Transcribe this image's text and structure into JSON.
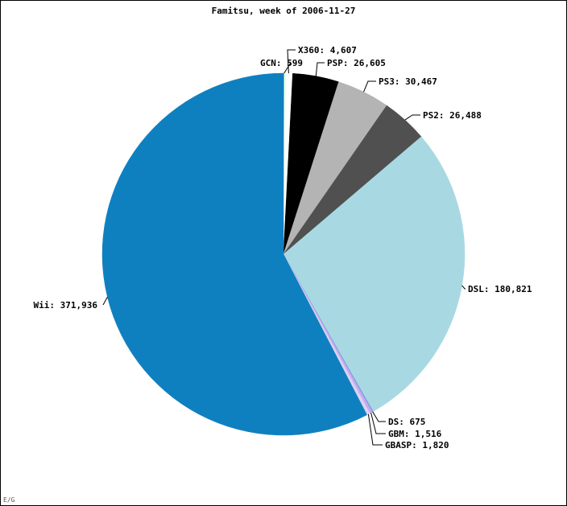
{
  "chart_data": {
    "type": "pie",
    "title": "Famitsu, week of 2006-11-27",
    "start_angle_deg": 0,
    "direction": "clockwise",
    "slices": [
      {
        "label": "GCN: 599",
        "name": "GCN",
        "value": 599,
        "color": "#4cfd59"
      },
      {
        "label": "X360: 4,607",
        "name": "X360",
        "value": 4607,
        "color": "#ffffff"
      },
      {
        "label": "PSP: 26,605",
        "name": "PSP",
        "value": 26605,
        "color": "#000000"
      },
      {
        "label": "PS3: 30,467",
        "name": "PS3",
        "value": 30467,
        "color": "#b4b4b4"
      },
      {
        "label": "PS2: 26,488",
        "name": "PS2",
        "value": 26488,
        "color": "#505050"
      },
      {
        "label": "DSL: 180,821",
        "name": "DSL",
        "value": 180821,
        "color": "#a8d9e3"
      },
      {
        "label": "DS: 675",
        "name": "DS",
        "value": 675,
        "color": "#7b9bd8"
      },
      {
        "label": "GBM: 1,516",
        "name": "GBM",
        "value": 1516,
        "color": "#c9aaf0"
      },
      {
        "label": "GBASP: 1,820",
        "name": "GBASP",
        "value": 1820,
        "color": "#ddd2f2"
      },
      {
        "label": "Wii: 371,936",
        "name": "Wii",
        "value": 371936,
        "color": "#0f80bf"
      }
    ]
  },
  "corner_mark": "E/G"
}
